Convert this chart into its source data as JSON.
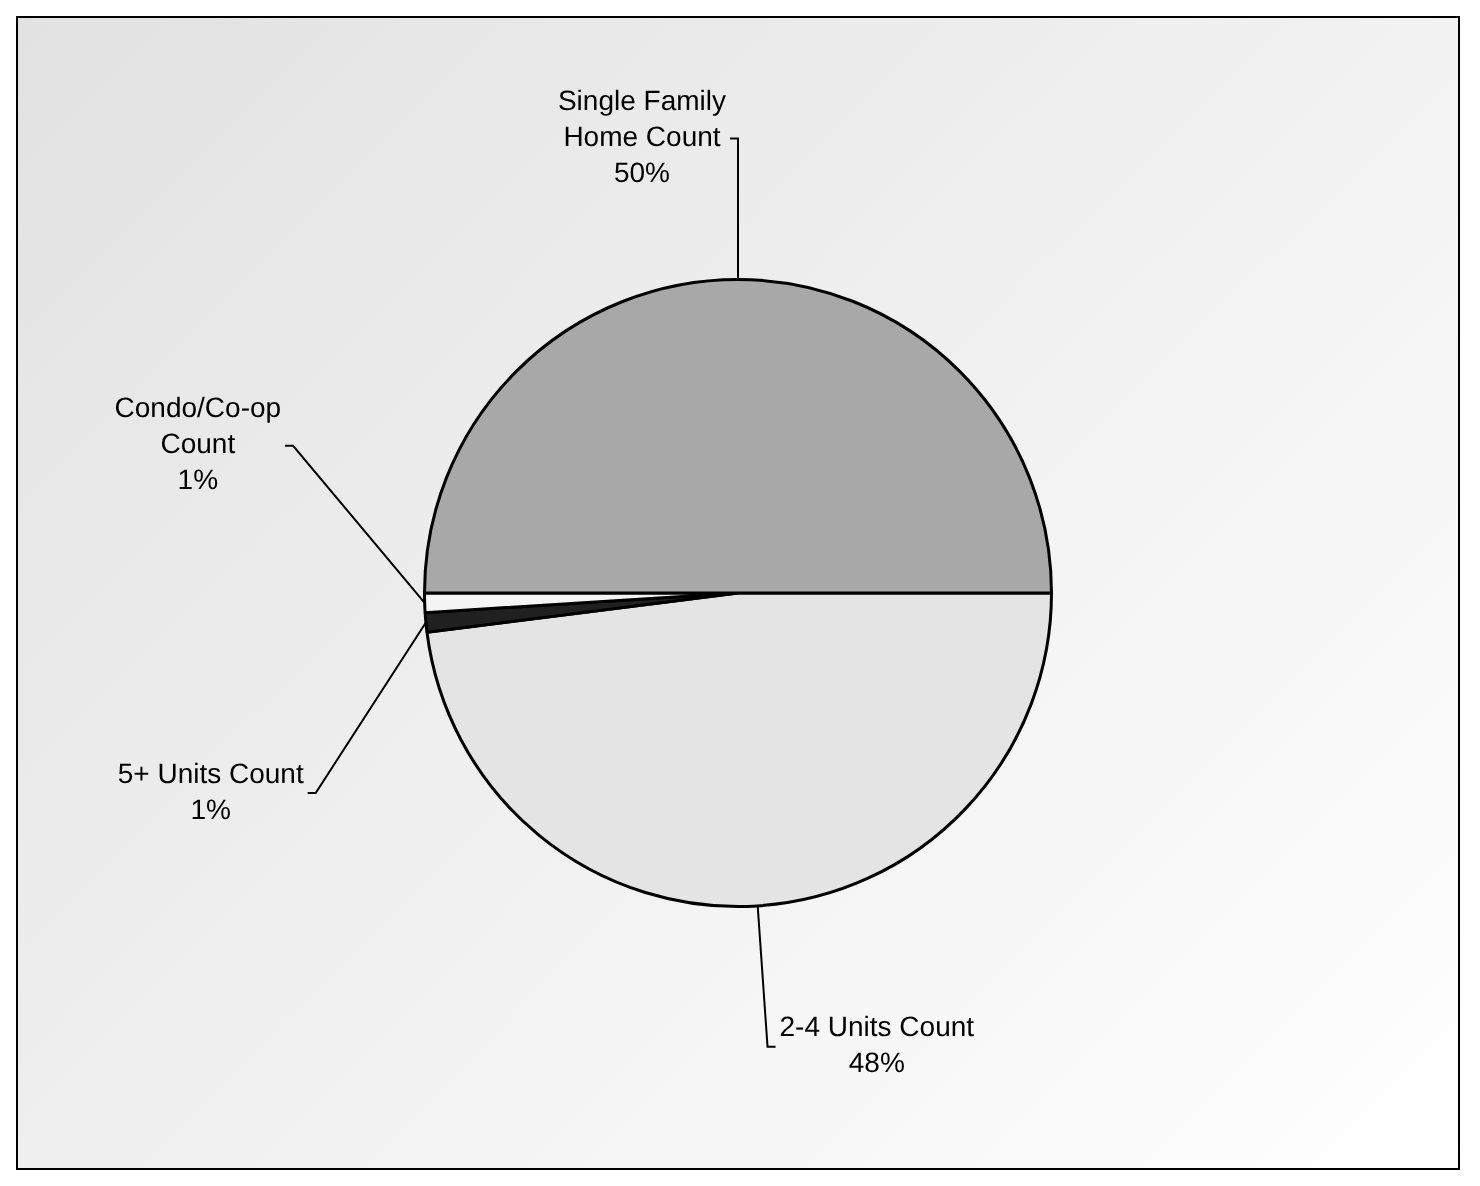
{
  "chart_data": {
    "type": "pie",
    "categories": [
      "2-4 Units Count",
      "5+ Units Count",
      "Condo/Co-op Count",
      "Single Family Home Count"
    ],
    "values": [
      48,
      1,
      1,
      50
    ],
    "colors": [
      "#e4e4e4",
      "#202020",
      "#f4f4f4",
      "#a8a8a8"
    ],
    "value_labels": [
      "48%",
      "1%",
      "1%",
      "50%"
    ],
    "legend": false
  }
}
